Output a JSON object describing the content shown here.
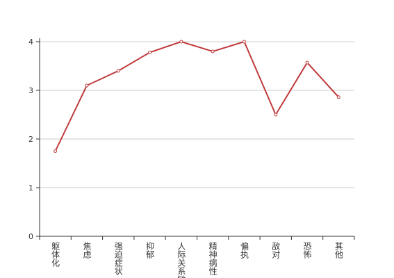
{
  "chart_data": {
    "type": "line",
    "categories": [
      "躯体化",
      "焦虑",
      "强迫症状",
      "抑郁",
      "人际关系敏感",
      "精神病性",
      "偏执",
      "敌对",
      "恐怖",
      "其他"
    ],
    "series": [
      {
        "color": "#c0393b",
        "values": [
          1.75,
          3.1,
          3.4,
          3.78,
          4.0,
          3.8,
          4.0,
          2.5,
          3.57,
          2.86
        ]
      }
    ],
    "ylim": [
      0,
      4
    ],
    "yticks": [
      0,
      1,
      2,
      3,
      4
    ],
    "grid": true
  }
}
